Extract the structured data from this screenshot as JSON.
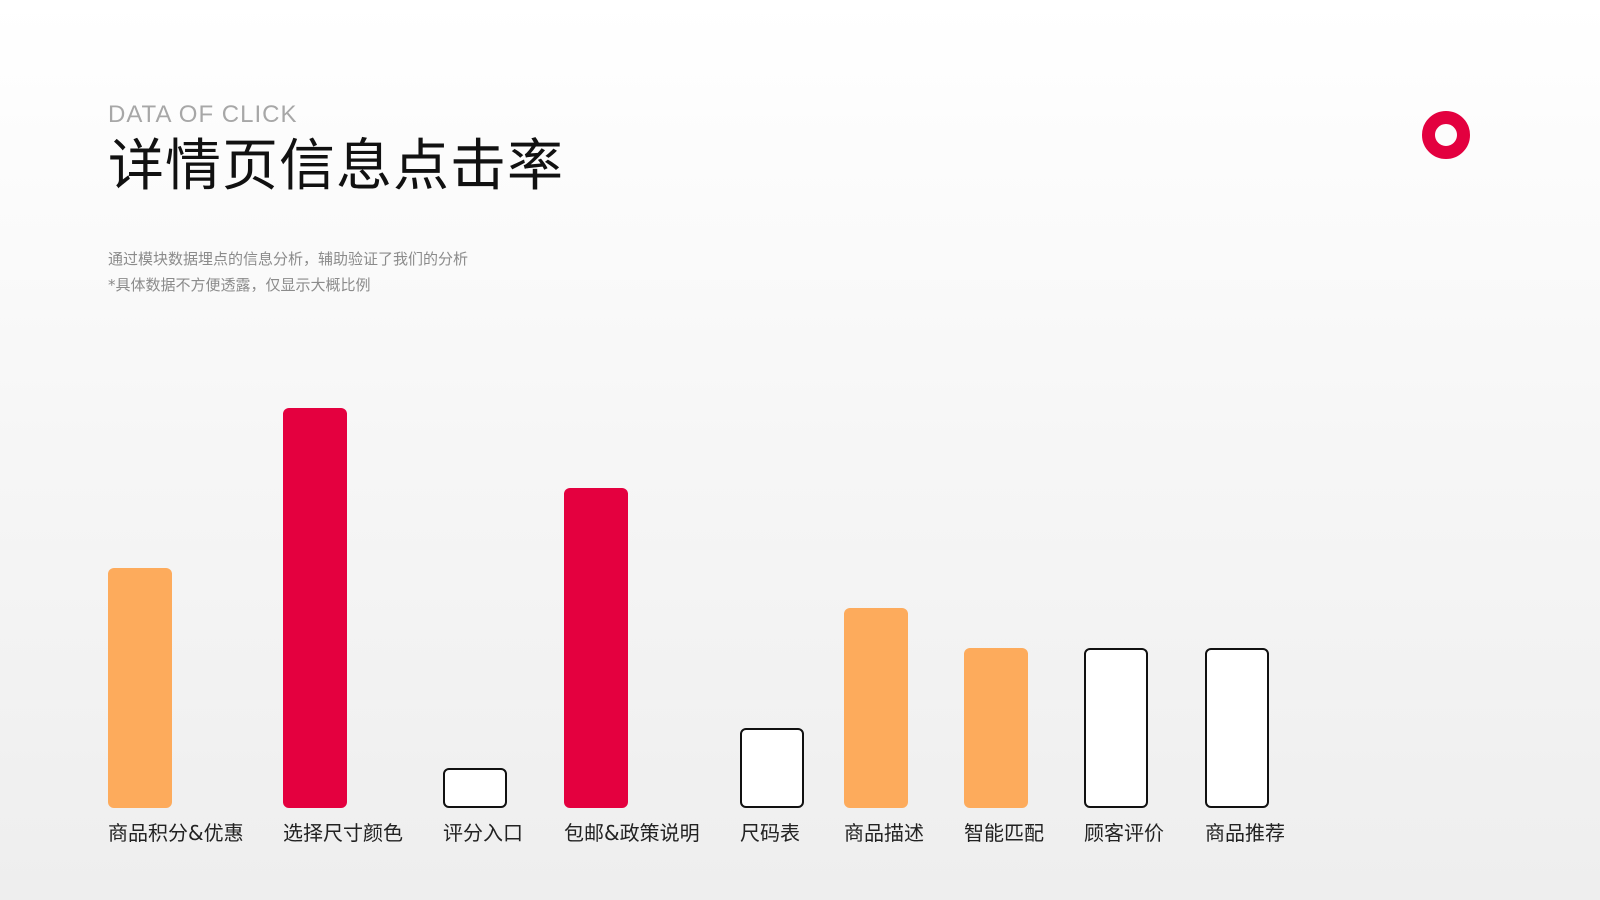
{
  "header": {
    "eyebrow": "DATA OF CLICK",
    "title": "详情页信息点击率",
    "desc_line1": "通过模块数据埋点的信息分析，辅助验证了我们的分析",
    "desc_line2": "*具体数据不方便透露，仅显示大概比例"
  },
  "colors": {
    "accent": "#e4003f",
    "orange": "#fdab5c",
    "outline": "#111111"
  },
  "decor": {
    "ring": "ring-icon"
  },
  "chart_data": {
    "type": "bar",
    "title": "详情页信息点击率",
    "xlabel": "",
    "ylabel": "",
    "ylim": [
      0,
      10
    ],
    "grid": false,
    "categories": [
      "商品积分&优惠",
      "选择尺寸颜色",
      "评分入口",
      "包邮&政策说明",
      "尺码表",
      "商品描述",
      "智能匹配",
      "顾客评价",
      "商品推荐"
    ],
    "values": [
      6,
      10,
      1,
      8,
      2,
      5,
      4,
      4,
      4
    ],
    "styles": [
      "orange",
      "red",
      "outline",
      "red",
      "outline",
      "orange",
      "orange",
      "outline",
      "outline"
    ]
  }
}
